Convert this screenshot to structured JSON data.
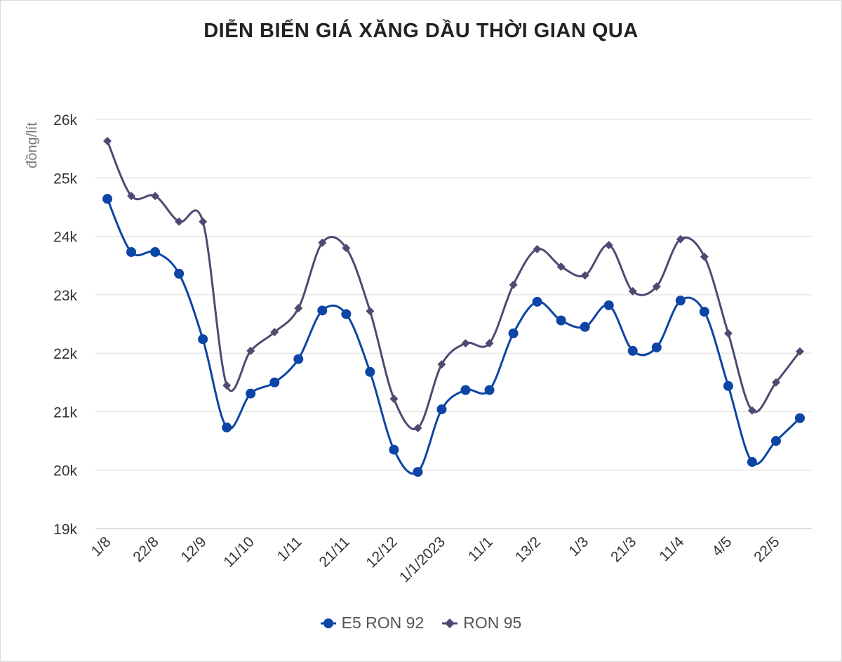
{
  "chart_data": {
    "type": "line",
    "title": "DIỄN BIẾN GIÁ XĂNG DẦU THỜI GIAN QUA",
    "ylabel": "đồng/lít",
    "xlabel": "",
    "ylim": [
      19000,
      26000
    ],
    "yticks": [
      {
        "value": 19000,
        "label": "19k"
      },
      {
        "value": 20000,
        "label": "20k"
      },
      {
        "value": 21000,
        "label": "21k"
      },
      {
        "value": 22000,
        "label": "22k"
      },
      {
        "value": 23000,
        "label": "23k"
      },
      {
        "value": 24000,
        "label": "24k"
      },
      {
        "value": 25000,
        "label": "25k"
      },
      {
        "value": 26000,
        "label": "26k"
      }
    ],
    "grid": true,
    "smooth": true,
    "legend_position": "bottom",
    "categories": [
      "1/8",
      "",
      "22/8",
      "",
      "12/9",
      "",
      "11/10",
      "",
      "1/11",
      "",
      "21/11",
      "",
      "12/12",
      "",
      "1/1/2023",
      "",
      "11/1",
      "",
      "13/2",
      "",
      "1/3",
      "",
      "21/3",
      "",
      "11/4",
      "",
      "4/5",
      "",
      "22/5",
      ""
    ],
    "series": [
      {
        "name": "E5 RON 92",
        "color": "#0c45a5",
        "marker": "circle",
        "values": [
          24640,
          23730,
          23730,
          23360,
          22240,
          20730,
          21310,
          21500,
          21900,
          22730,
          22670,
          21680,
          20350,
          19970,
          21040,
          21370,
          21370,
          22340,
          22880,
          22560,
          22450,
          22820,
          22040,
          22100,
          22900,
          22710,
          21440,
          20140,
          20500,
          20890
        ]
      },
      {
        "name": "RON 95",
        "color": "#4f4a72",
        "marker": "diamond",
        "values": [
          25630,
          24690,
          24690,
          24250,
          24250,
          21450,
          22040,
          22360,
          22770,
          23890,
          23800,
          22720,
          21220,
          20720,
          21810,
          22170,
          22170,
          23170,
          23780,
          23480,
          23330,
          23850,
          23060,
          23140,
          23950,
          23650,
          22340,
          21020,
          21500,
          22030
        ]
      }
    ]
  }
}
